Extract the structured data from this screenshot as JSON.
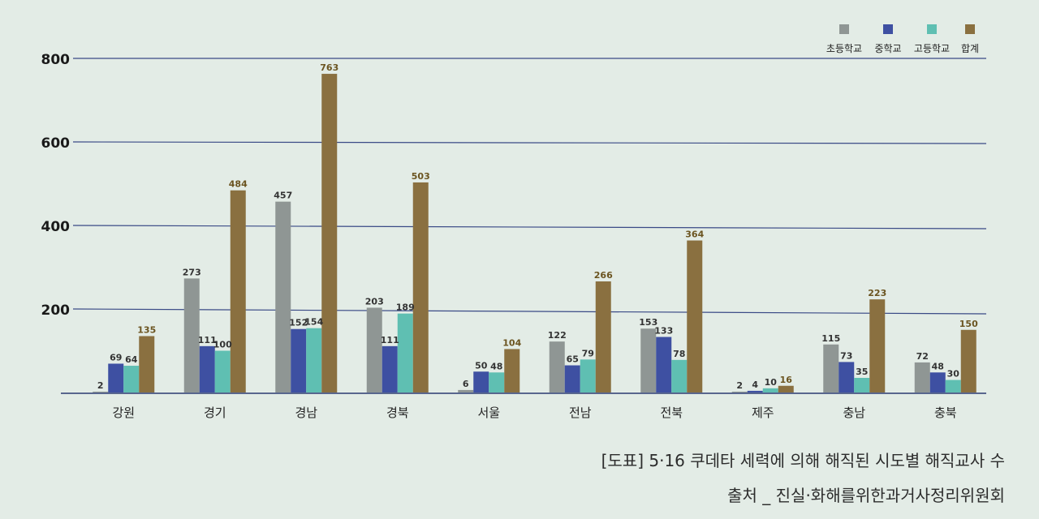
{
  "caption": {
    "title": "[도표]  5·16 쿠데타 세력에 의해 해직된 시도별 해직교사 수",
    "source": "출처 _ 진실·화해를위한과거사정리위원회"
  },
  "chart_data": {
    "type": "bar",
    "categories": [
      "강원",
      "경기",
      "경남",
      "경북",
      "서울",
      "전남",
      "전북",
      "제주",
      "충남",
      "충북"
    ],
    "series": [
      {
        "name": "초등학교",
        "color": "#8f9694",
        "values": [
          2,
          273,
          457,
          203,
          6,
          122,
          153,
          2,
          115,
          72
        ]
      },
      {
        "name": "중학교",
        "color": "#3e50a2",
        "values": [
          69,
          111,
          152,
          111,
          50,
          65,
          133,
          4,
          73,
          48
        ]
      },
      {
        "name": "고등학교",
        "color": "#5fbfb2",
        "values": [
          64,
          100,
          154,
          189,
          48,
          79,
          78,
          10,
          35,
          30
        ]
      },
      {
        "name": "합계",
        "color": "#8a7040",
        "values": [
          135,
          484,
          763,
          503,
          104,
          266,
          364,
          16,
          223,
          150
        ]
      }
    ],
    "y_ticks": [
      "200",
      "400",
      "600",
      "800"
    ],
    "ylim": [
      0,
      800
    ],
    "grid": true,
    "legend": "top-right"
  }
}
